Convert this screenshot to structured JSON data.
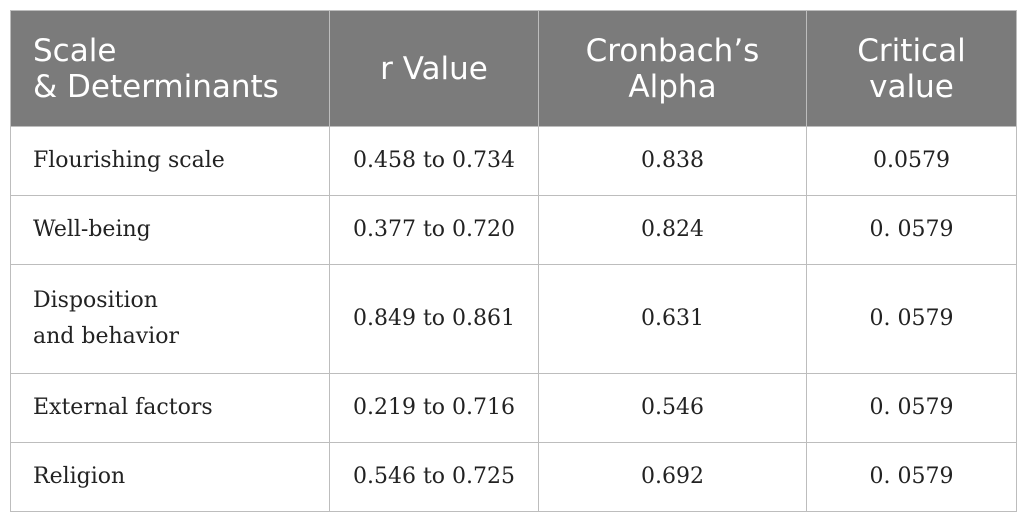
{
  "table": {
    "headers": [
      [
        "Scale",
        "& Determinants"
      ],
      [
        "r Value"
      ],
      [
        "Cronbach’s",
        "Alpha"
      ],
      [
        "Critical",
        "value"
      ]
    ],
    "rows": [
      {
        "scale": [
          "Flourishing scale"
        ],
        "r_value": "0.458 to 0.734",
        "alpha": "0.838",
        "critical": "0.0579"
      },
      {
        "scale": [
          "Well-being"
        ],
        "r_value": "0.377 to 0.720",
        "alpha": "0.824",
        "critical": "0. 0579"
      },
      {
        "scale": [
          "Disposition",
          "and behavior"
        ],
        "r_value": "0.849 to 0.861",
        "alpha": "0.631",
        "critical": "0. 0579"
      },
      {
        "scale": [
          "External factors"
        ],
        "r_value": "0.219 to 0.716",
        "alpha": "0.546",
        "critical": "0. 0579"
      },
      {
        "scale": [
          "Religion"
        ],
        "r_value": "0.546 to 0.725",
        "alpha": "0.692",
        "critical": "0. 0579"
      }
    ]
  }
}
